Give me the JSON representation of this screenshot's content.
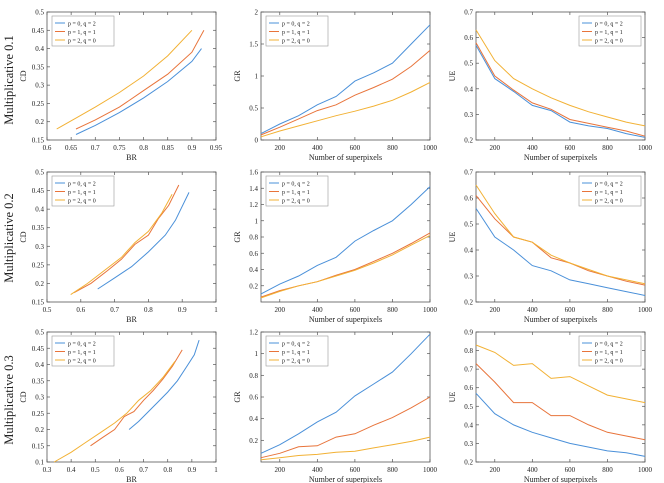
{
  "colors": {
    "s1": "#4a90d9",
    "s2": "#e8743b",
    "s3": "#f2b134",
    "axis": "#555555"
  },
  "row_labels": [
    "Multiplicative 0.1",
    "Multiplicative 0.2",
    "Multiplicative 0.3"
  ],
  "chart_data": [
    {
      "type": "line",
      "row": 0,
      "col": 0,
      "xlabel": "BR",
      "ylabel": "CD",
      "xlim": [
        0.6,
        0.95
      ],
      "ylim": [
        0.15,
        0.5
      ],
      "xticks": [
        0.6,
        0.65,
        0.7,
        0.75,
        0.8,
        0.85,
        0.9,
        0.95
      ],
      "yticks": [
        0.15,
        0.2,
        0.25,
        0.3,
        0.35,
        0.4,
        0.45,
        0.5
      ],
      "legend": "top-left",
      "series": [
        {
          "name": "p = 0, q = 2",
          "x": [
            0.66,
            0.7,
            0.75,
            0.8,
            0.85,
            0.9,
            0.92
          ],
          "y": [
            0.165,
            0.19,
            0.225,
            0.265,
            0.31,
            0.365,
            0.4
          ]
        },
        {
          "name": "p = 1, q = 1",
          "x": [
            0.66,
            0.7,
            0.75,
            0.8,
            0.85,
            0.9,
            0.925
          ],
          "y": [
            0.18,
            0.205,
            0.24,
            0.285,
            0.33,
            0.39,
            0.45
          ]
        },
        {
          "name": "p = 2, q = 0",
          "x": [
            0.62,
            0.66,
            0.7,
            0.75,
            0.8,
            0.85,
            0.9
          ],
          "y": [
            0.18,
            0.21,
            0.24,
            0.28,
            0.325,
            0.38,
            0.45
          ]
        }
      ]
    },
    {
      "type": "line",
      "row": 0,
      "col": 1,
      "xlabel": "Number of superpixels",
      "ylabel": "GR",
      "xlim": [
        100,
        1000
      ],
      "ylim": [
        0,
        2
      ],
      "xticks": [
        200,
        400,
        600,
        800,
        1000
      ],
      "yticks": [
        0,
        0.5,
        1,
        1.5,
        2
      ],
      "legend": "top-left",
      "series": [
        {
          "name": "p = 0, q = 2",
          "x": [
            100,
            200,
            300,
            400,
            500,
            600,
            700,
            800,
            900,
            1000
          ],
          "y": [
            0.1,
            0.25,
            0.38,
            0.55,
            0.68,
            0.92,
            1.05,
            1.2,
            1.5,
            1.8
          ]
        },
        {
          "name": "p = 1, q = 1",
          "x": [
            100,
            200,
            300,
            400,
            500,
            600,
            700,
            800,
            900,
            1000
          ],
          "y": [
            0.08,
            0.2,
            0.33,
            0.46,
            0.55,
            0.7,
            0.82,
            0.95,
            1.15,
            1.4
          ]
        },
        {
          "name": "p = 2, q = 0",
          "x": [
            100,
            200,
            300,
            400,
            500,
            600,
            700,
            800,
            900,
            1000
          ],
          "y": [
            0.05,
            0.14,
            0.22,
            0.3,
            0.38,
            0.45,
            0.53,
            0.62,
            0.75,
            0.9
          ]
        }
      ]
    },
    {
      "type": "line",
      "row": 0,
      "col": 2,
      "xlabel": "Number of superpixels",
      "ylabel": "UE",
      "xlim": [
        100,
        1000
      ],
      "ylim": [
        0.2,
        0.7
      ],
      "xticks": [
        200,
        400,
        600,
        800,
        1000
      ],
      "yticks": [
        0.2,
        0.3,
        0.4,
        0.5,
        0.6,
        0.7
      ],
      "legend": "top-right",
      "series": [
        {
          "name": "p = 0, q = 2",
          "x": [
            100,
            200,
            300,
            400,
            500,
            600,
            700,
            800,
            900,
            1000
          ],
          "y": [
            0.57,
            0.44,
            0.39,
            0.335,
            0.315,
            0.27,
            0.255,
            0.245,
            0.225,
            0.21
          ]
        },
        {
          "name": "p = 1, q = 1",
          "x": [
            100,
            200,
            300,
            400,
            500,
            600,
            700,
            800,
            900,
            1000
          ],
          "y": [
            0.58,
            0.45,
            0.395,
            0.345,
            0.32,
            0.28,
            0.265,
            0.25,
            0.235,
            0.215
          ]
        },
        {
          "name": "p = 2, q = 0",
          "x": [
            100,
            200,
            300,
            400,
            500,
            600,
            700,
            800,
            900,
            1000
          ],
          "y": [
            0.63,
            0.51,
            0.44,
            0.4,
            0.365,
            0.335,
            0.31,
            0.29,
            0.27,
            0.255
          ]
        }
      ]
    },
    {
      "type": "line",
      "row": 1,
      "col": 0,
      "xlabel": "BR",
      "ylabel": "CD",
      "xlim": [
        0.5,
        1.0
      ],
      "ylim": [
        0.15,
        0.5
      ],
      "xticks": [
        0.5,
        0.6,
        0.7,
        0.8,
        0.9,
        1
      ],
      "yticks": [
        0.15,
        0.2,
        0.25,
        0.3,
        0.35,
        0.4,
        0.45,
        0.5
      ],
      "legend": "top-left",
      "series": [
        {
          "name": "p = 0, q = 2",
          "x": [
            0.65,
            0.7,
            0.75,
            0.8,
            0.85,
            0.88,
            0.92
          ],
          "y": [
            0.185,
            0.215,
            0.245,
            0.285,
            0.33,
            0.37,
            0.445
          ]
        },
        {
          "name": "p = 1, q = 1",
          "x": [
            0.58,
            0.63,
            0.68,
            0.72,
            0.76,
            0.8,
            0.83,
            0.86,
            0.89
          ],
          "y": [
            0.175,
            0.2,
            0.235,
            0.265,
            0.305,
            0.33,
            0.375,
            0.41,
            0.465
          ]
        },
        {
          "name": "p = 2, q = 0",
          "x": [
            0.57,
            0.62,
            0.67,
            0.72,
            0.76,
            0.8,
            0.84,
            0.87
          ],
          "y": [
            0.17,
            0.2,
            0.235,
            0.27,
            0.31,
            0.34,
            0.39,
            0.44
          ]
        }
      ]
    },
    {
      "type": "line",
      "row": 1,
      "col": 1,
      "xlabel": "Number of superpixels",
      "ylabel": "GR",
      "xlim": [
        100,
        1000
      ],
      "ylim": [
        0,
        1.6
      ],
      "xticks": [
        200,
        400,
        600,
        800,
        1000
      ],
      "yticks": [
        0.2,
        0.4,
        0.6,
        0.8,
        1,
        1.2,
        1.4,
        1.6
      ],
      "legend": "top-left",
      "series": [
        {
          "name": "p = 0, q = 2",
          "x": [
            100,
            200,
            300,
            400,
            500,
            600,
            700,
            800,
            900,
            1000
          ],
          "y": [
            0.1,
            0.22,
            0.32,
            0.45,
            0.55,
            0.75,
            0.88,
            1.0,
            1.2,
            1.42
          ]
        },
        {
          "name": "p = 1, q = 1",
          "x": [
            100,
            200,
            300,
            400,
            500,
            600,
            700,
            800,
            900,
            1000
          ],
          "y": [
            0.06,
            0.14,
            0.2,
            0.25,
            0.33,
            0.4,
            0.5,
            0.6,
            0.72,
            0.85
          ]
        },
        {
          "name": "p = 2, q = 0",
          "x": [
            100,
            200,
            300,
            400,
            500,
            600,
            700,
            800,
            900,
            1000
          ],
          "y": [
            0.05,
            0.13,
            0.2,
            0.25,
            0.32,
            0.39,
            0.48,
            0.58,
            0.7,
            0.82
          ]
        }
      ]
    },
    {
      "type": "line",
      "row": 1,
      "col": 2,
      "xlabel": "Number of superpixels",
      "ylabel": "UE",
      "xlim": [
        100,
        1000
      ],
      "ylim": [
        0.2,
        0.7
      ],
      "xticks": [
        200,
        400,
        600,
        800,
        1000
      ],
      "yticks": [
        0.2,
        0.3,
        0.4,
        0.5,
        0.6,
        0.7
      ],
      "legend": "top-right",
      "series": [
        {
          "name": "p = 0, q = 2",
          "x": [
            100,
            200,
            300,
            400,
            500,
            600,
            700,
            800,
            900,
            1000
          ],
          "y": [
            0.56,
            0.45,
            0.4,
            0.34,
            0.32,
            0.285,
            0.27,
            0.255,
            0.24,
            0.225
          ]
        },
        {
          "name": "p = 1, q = 1",
          "x": [
            100,
            200,
            300,
            400,
            500,
            600,
            700,
            800,
            900,
            1000
          ],
          "y": [
            0.61,
            0.52,
            0.45,
            0.43,
            0.37,
            0.35,
            0.32,
            0.3,
            0.28,
            0.265
          ]
        },
        {
          "name": "p = 2, q = 0",
          "x": [
            100,
            200,
            300,
            400,
            500,
            600,
            700,
            800,
            900,
            1000
          ],
          "y": [
            0.65,
            0.54,
            0.45,
            0.43,
            0.38,
            0.35,
            0.325,
            0.3,
            0.285,
            0.27
          ]
        }
      ]
    },
    {
      "type": "line",
      "row": 2,
      "col": 0,
      "xlabel": "BR",
      "ylabel": "CD",
      "xlim": [
        0.3,
        1.0
      ],
      "ylim": [
        0.1,
        0.5
      ],
      "xticks": [
        0.3,
        0.4,
        0.5,
        0.6,
        0.7,
        0.8,
        0.9,
        1
      ],
      "yticks": [
        0.1,
        0.15,
        0.2,
        0.25,
        0.3,
        0.35,
        0.4,
        0.45,
        0.5
      ],
      "legend": "top-left",
      "series": [
        {
          "name": "p = 0, q = 2",
          "x": [
            0.64,
            0.68,
            0.72,
            0.76,
            0.8,
            0.84,
            0.88,
            0.91,
            0.93
          ],
          "y": [
            0.2,
            0.225,
            0.255,
            0.285,
            0.315,
            0.35,
            0.395,
            0.43,
            0.475
          ]
        },
        {
          "name": "p = 1, q = 1",
          "x": [
            0.48,
            0.53,
            0.58,
            0.62,
            0.66,
            0.7,
            0.74,
            0.78,
            0.82,
            0.86
          ],
          "y": [
            0.15,
            0.175,
            0.2,
            0.24,
            0.255,
            0.29,
            0.32,
            0.355,
            0.395,
            0.445
          ]
        },
        {
          "name": "p = 2, q = 0",
          "x": [
            0.33,
            0.4,
            0.46,
            0.52,
            0.58,
            0.63,
            0.68,
            0.73,
            0.78,
            0.83
          ],
          "y": [
            0.1,
            0.13,
            0.16,
            0.19,
            0.22,
            0.25,
            0.29,
            0.32,
            0.36,
            0.41
          ]
        }
      ]
    },
    {
      "type": "line",
      "row": 2,
      "col": 1,
      "xlabel": "Number of superpixels",
      "ylabel": "GR",
      "xlim": [
        100,
        1000
      ],
      "ylim": [
        0,
        1.2
      ],
      "xticks": [
        200,
        400,
        600,
        800,
        1000
      ],
      "yticks": [
        0.2,
        0.4,
        0.6,
        0.8,
        1,
        1.2
      ],
      "legend": "top-left",
      "series": [
        {
          "name": "p = 0, q = 2",
          "x": [
            100,
            200,
            300,
            400,
            500,
            600,
            700,
            800,
            900,
            1000
          ],
          "y": [
            0.08,
            0.16,
            0.26,
            0.37,
            0.46,
            0.61,
            0.72,
            0.83,
            1.0,
            1.18
          ]
        },
        {
          "name": "p = 1, q = 1",
          "x": [
            100,
            200,
            300,
            400,
            500,
            600,
            700,
            800,
            900,
            1000
          ],
          "y": [
            0.04,
            0.08,
            0.14,
            0.15,
            0.23,
            0.26,
            0.34,
            0.41,
            0.5,
            0.6
          ]
        },
        {
          "name": "p = 2, q = 0",
          "x": [
            100,
            200,
            300,
            400,
            500,
            600,
            700,
            800,
            900,
            1000
          ],
          "y": [
            0.02,
            0.04,
            0.06,
            0.07,
            0.09,
            0.1,
            0.13,
            0.16,
            0.19,
            0.23
          ]
        }
      ]
    },
    {
      "type": "line",
      "row": 2,
      "col": 2,
      "xlabel": "Number of superpixels",
      "ylabel": "UE",
      "xlim": [
        100,
        1000
      ],
      "ylim": [
        0.2,
        0.9
      ],
      "xticks": [
        200,
        400,
        600,
        800,
        1000
      ],
      "yticks": [
        0.2,
        0.3,
        0.4,
        0.5,
        0.6,
        0.7,
        0.8,
        0.9
      ],
      "legend": "top-right",
      "series": [
        {
          "name": "p = 0, q = 2",
          "x": [
            100,
            200,
            300,
            400,
            500,
            600,
            700,
            800,
            900,
            1000
          ],
          "y": [
            0.57,
            0.46,
            0.4,
            0.36,
            0.33,
            0.3,
            0.28,
            0.26,
            0.25,
            0.23
          ]
        },
        {
          "name": "p = 1, q = 1",
          "x": [
            100,
            200,
            300,
            400,
            500,
            600,
            700,
            800,
            900,
            1000
          ],
          "y": [
            0.73,
            0.63,
            0.52,
            0.52,
            0.45,
            0.45,
            0.4,
            0.36,
            0.34,
            0.32
          ]
        },
        {
          "name": "p = 2, q = 0",
          "x": [
            100,
            200,
            300,
            400,
            500,
            600,
            700,
            800,
            900,
            1000
          ],
          "y": [
            0.83,
            0.79,
            0.72,
            0.73,
            0.65,
            0.66,
            0.61,
            0.56,
            0.54,
            0.52
          ]
        }
      ]
    }
  ]
}
